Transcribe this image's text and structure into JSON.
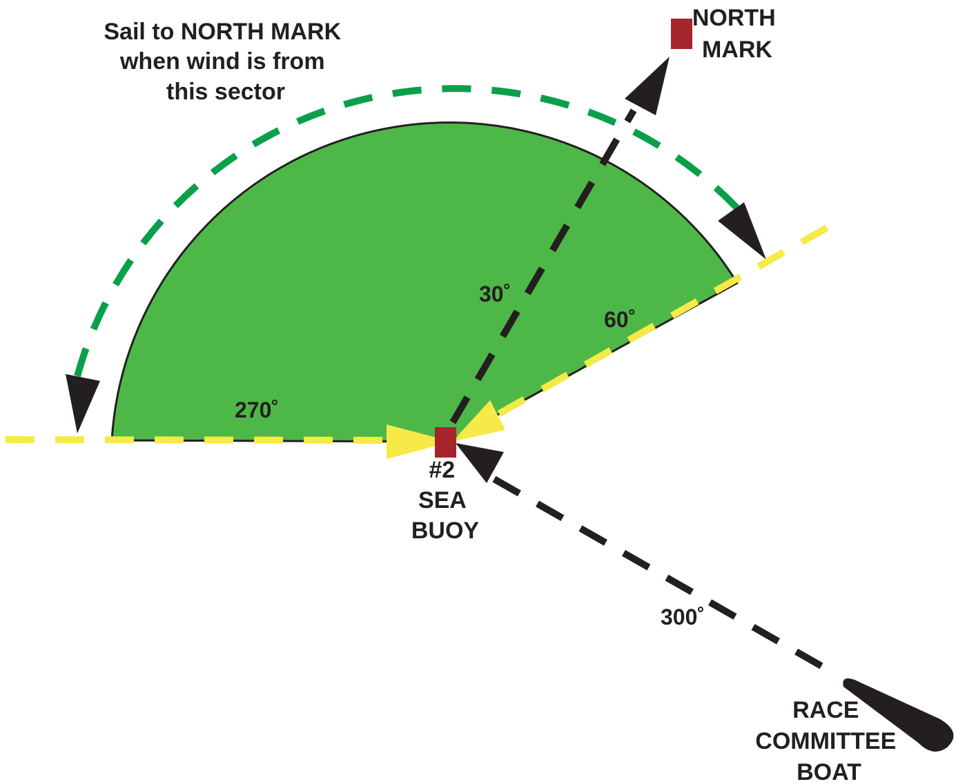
{
  "caption": {
    "line1": "Sail to NORTH MARK",
    "line2": "when wind is from",
    "line3": "this sector"
  },
  "north_mark": {
    "line1": "NORTH",
    "line2": "MARK"
  },
  "sea_buoy": {
    "line1": "#2",
    "line2": "SEA",
    "line3": "BUOY"
  },
  "race_committee": {
    "line1": "RACE",
    "line2": "COMMITTEE",
    "line3": "BOAT"
  },
  "bearings": {
    "b270": "270˚",
    "b30": "30˚",
    "b60": "60˚",
    "b300": "300˚"
  },
  "colors": {
    "sector_fill": "#4db848",
    "sector_arrow": "#0aa04a",
    "bearing_line": "#f5ea47",
    "course_line": "#231f20",
    "mark": "#a4252c"
  }
}
